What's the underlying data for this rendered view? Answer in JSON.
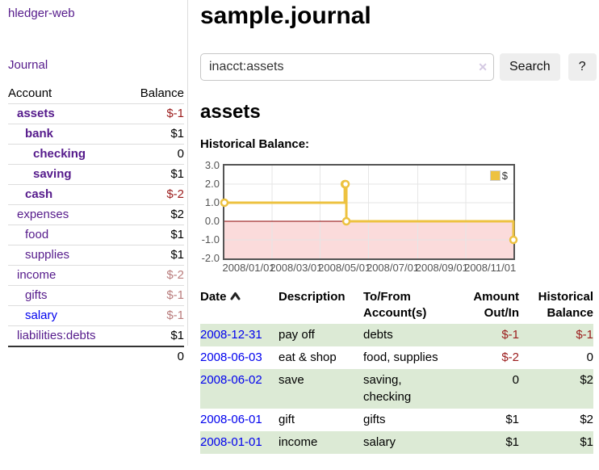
{
  "app": {
    "brand": "hledger-web",
    "nav_journal": "Journal"
  },
  "sidebar": {
    "account_header": "Account",
    "balance_header": "Balance",
    "accounts": [
      {
        "name": "assets",
        "depth": 1,
        "bold": true,
        "link": "visited",
        "balance": "$-1",
        "balance_tone": "neg-strong"
      },
      {
        "name": "bank",
        "depth": 2,
        "bold": true,
        "link": "visited",
        "balance": "$1",
        "balance_tone": "normal"
      },
      {
        "name": "checking",
        "depth": 3,
        "bold": true,
        "link": "visited",
        "balance": "0",
        "balance_tone": "normal"
      },
      {
        "name": "saving",
        "depth": 3,
        "bold": true,
        "link": "visited",
        "balance": "$1",
        "balance_tone": "normal"
      },
      {
        "name": "cash",
        "depth": 2,
        "bold": true,
        "link": "visited",
        "balance": "$-2",
        "balance_tone": "neg-strong"
      },
      {
        "name": "expenses",
        "depth": 1,
        "bold": false,
        "link": "visited",
        "balance": "$2",
        "balance_tone": "normal"
      },
      {
        "name": "food",
        "depth": 2,
        "bold": false,
        "link": "visited",
        "balance": "$1",
        "balance_tone": "normal"
      },
      {
        "name": "supplies",
        "depth": 2,
        "bold": false,
        "link": "visited",
        "balance": "$1",
        "balance_tone": "normal"
      },
      {
        "name": "income",
        "depth": 1,
        "bold": false,
        "link": "visited",
        "balance": "$-2",
        "balance_tone": "neg-soft"
      },
      {
        "name": "gifts",
        "depth": 2,
        "bold": false,
        "link": "visited",
        "balance": "$-1",
        "balance_tone": "neg-soft"
      },
      {
        "name": "salary",
        "depth": 2,
        "bold": false,
        "link": "unvisited",
        "balance": "$-1",
        "balance_tone": "neg-soft"
      },
      {
        "name": "liabilities:debts",
        "depth": 1,
        "bold": false,
        "link": "visited",
        "balance": "$1",
        "balance_tone": "normal"
      }
    ],
    "total": "0"
  },
  "main": {
    "title": "sample.journal",
    "search": {
      "value": "inacct:assets",
      "clear": "✕",
      "button": "Search",
      "help": "?"
    },
    "heading": "assets",
    "chart_title": "Historical Balance:"
  },
  "chart_data": {
    "type": "line",
    "style": "step",
    "title": "Historical Balance",
    "series": [
      {
        "name": "$",
        "color": "#edc240",
        "points": [
          [
            "2008-01-01",
            1
          ],
          [
            "2008-06-01",
            2
          ],
          [
            "2008-06-02",
            2
          ],
          [
            "2008-06-03",
            0
          ],
          [
            "2008-12-31",
            -1
          ]
        ]
      }
    ],
    "x_ticks": [
      "2008/01/01",
      "2008/03/01",
      "2008/05/01",
      "2008/07/01",
      "2008/09/01",
      "2008/11/01"
    ],
    "y_ticks": [
      3.0,
      2.0,
      1.0,
      0.0,
      -1.0,
      -2.0
    ],
    "xlim": [
      "2008-01-01",
      "2008-12-31"
    ],
    "ylim": [
      -2,
      3
    ],
    "grid": true,
    "legend_position": "top-right",
    "zero_line_color": "#8b0000",
    "negative_region_color": "#fbdbdb",
    "grid_color": "#e6e6e6",
    "border_color": "#545454"
  },
  "register": {
    "headers": {
      "date": "Date",
      "description": "Description",
      "tofrom": "To/From Account(s)",
      "amount": "Amount Out/In",
      "balance": "Historical Balance"
    },
    "rows": [
      {
        "date": "2008-12-31",
        "description": "pay off",
        "accounts": "debts",
        "amount": "$-1",
        "amount_tone": "neg-strong",
        "balance": "$-1",
        "balance_tone": "neg-strong"
      },
      {
        "date": "2008-06-03",
        "description": "eat & shop",
        "accounts": "food, supplies",
        "amount": "$-2",
        "amount_tone": "neg-strong",
        "balance": "0",
        "balance_tone": "normal"
      },
      {
        "date": "2008-06-02",
        "description": "save",
        "accounts": "saving, checking",
        "amount": "0",
        "amount_tone": "normal",
        "balance": "$2",
        "balance_tone": "normal"
      },
      {
        "date": "2008-06-01",
        "description": "gift",
        "accounts": "gifts",
        "amount": "$1",
        "amount_tone": "normal",
        "balance": "$2",
        "balance_tone": "normal"
      },
      {
        "date": "2008-01-01",
        "description": "income",
        "accounts": "salary",
        "amount": "$1",
        "amount_tone": "normal",
        "balance": "$1",
        "balance_tone": "normal"
      }
    ]
  },
  "colors": {
    "accent_purple": "#551a8b",
    "link_blue": "#0000ee",
    "negative_strong": "#9b1c1c",
    "negative_soft": "#b97c7c",
    "row_green": "#dcead5",
    "chart_gold": "#edc240"
  }
}
